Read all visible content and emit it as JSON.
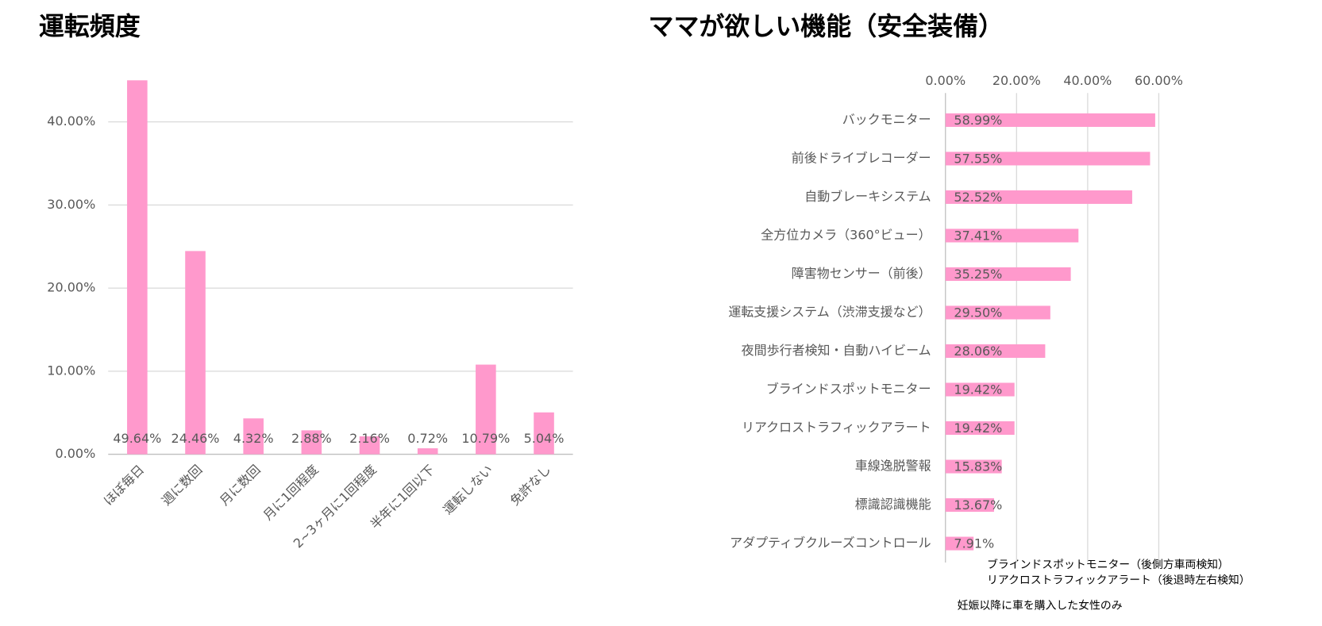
{
  "chart_data": [
    {
      "type": "column",
      "title": "運転頻度",
      "categories": [
        "ほぼ毎日",
        "週に数回",
        "月に数回",
        "月に1回程度",
        "2~3ヶ月に1回程度",
        "半年に1回以下",
        "運転しない",
        "免許なし"
      ],
      "values": [
        49.64,
        24.46,
        4.32,
        2.88,
        2.16,
        0.72,
        10.79,
        5.04
      ],
      "value_labels": [
        "49.64%",
        "24.46%",
        "4.32%",
        "2.88%",
        "2.16%",
        "0.72%",
        "10.79%",
        "5.04%"
      ],
      "color": "#ff99cc",
      "ylim": [
        0,
        45
      ],
      "yticks": [
        {
          "value": 0,
          "label": "0.00%"
        },
        {
          "value": 10,
          "label": "10.00%"
        },
        {
          "value": 20,
          "label": "20.00%"
        },
        {
          "value": 30,
          "label": "30.00%"
        },
        {
          "value": 40,
          "label": "40.00%"
        }
      ],
      "grid": true
    },
    {
      "type": "bar",
      "title": "ママが欲しい機能（安全装備）",
      "categories": [
        "バックモニター",
        "前後ドライブレコーダー",
        "自動ブレーキシステム",
        "全方位カメラ（360°ビュー）",
        "障害物センサー（前後）",
        "運転支援システム（渋滞支援など）",
        "夜間歩行者検知・自動ハイビーム",
        "ブラインドスポットモニター",
        "リアクロストラフィックアラート",
        "車線逸脱警報",
        "標識認識機能",
        "アダプティブクルーズコントロール"
      ],
      "values": [
        58.99,
        57.55,
        52.52,
        37.41,
        35.25,
        29.5,
        28.06,
        19.42,
        19.42,
        15.83,
        13.67,
        7.91
      ],
      "value_labels": [
        "58.99%",
        "57.55%",
        "52.52%",
        "37.41%",
        "35.25%",
        "29.50%",
        "28.06%",
        "19.42%",
        "19.42%",
        "15.83%",
        "13.67%",
        "7.91%"
      ],
      "color": "#ff99cc",
      "xlim": [
        0,
        60
      ],
      "xticks": [
        {
          "value": 0,
          "label": "0.00%"
        },
        {
          "value": 20,
          "label": "20.00%"
        },
        {
          "value": 40,
          "label": "40.00%"
        },
        {
          "value": 60,
          "label": "60.00%"
        }
      ],
      "grid": true,
      "annotations": [
        "ブラインドスポットモニター（後側方車両検知）",
        "リアクロストラフィックアラート（後退時左右検知）",
        "妊娠以降に車を購入した女性のみ"
      ]
    }
  ]
}
